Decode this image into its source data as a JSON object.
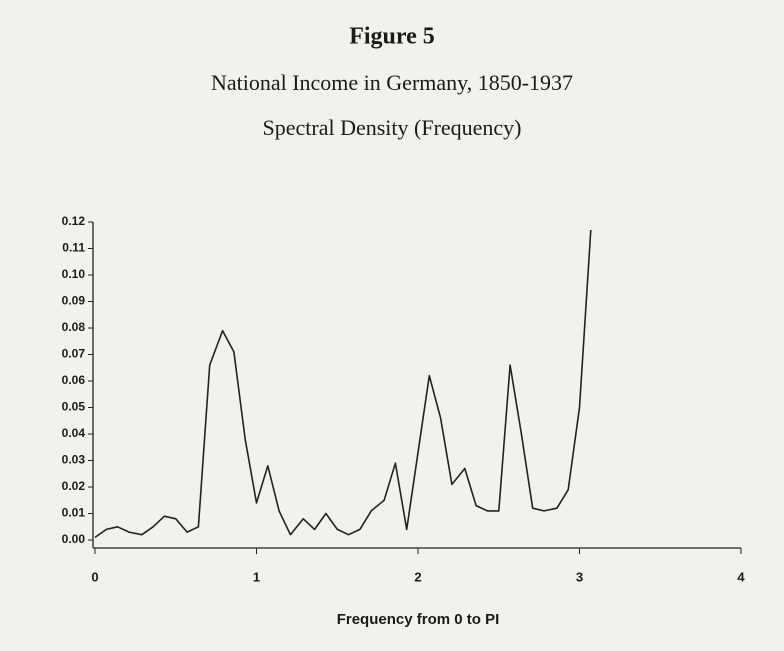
{
  "chart_data": {
    "type": "line",
    "title": "Figure 5",
    "subtitle": "National Income in Germany, 1850-1937",
    "subtitle2": "Spectral Density (Frequency)",
    "x_label": "Frequency from 0 to PI",
    "color": "#222222",
    "x": [
      0,
      0.07,
      0.14,
      0.21,
      0.29,
      0.36,
      0.43,
      0.5,
      0.57,
      0.64,
      0.71,
      0.79,
      0.86,
      0.93,
      1.0,
      1.07,
      1.14,
      1.21,
      1.29,
      1.36,
      1.43,
      1.5,
      1.57,
      1.64,
      1.71,
      1.79,
      1.86,
      1.93,
      2.0,
      2.07,
      2.14,
      2.21,
      2.29,
      2.36,
      2.43,
      2.5,
      2.57,
      2.64,
      2.71,
      2.78,
      2.86,
      2.93,
      3.0,
      3.07
    ],
    "values": [
      0.001,
      0.004,
      0.005,
      0.003,
      0.002,
      0.005,
      0.009,
      0.008,
      0.003,
      0.005,
      0.066,
      0.079,
      0.071,
      0.038,
      0.014,
      0.028,
      0.011,
      0.002,
      0.008,
      0.004,
      0.01,
      0.004,
      0.002,
      0.004,
      0.011,
      0.015,
      0.029,
      0.004,
      0.033,
      0.062,
      0.046,
      0.021,
      0.027,
      0.013,
      0.011,
      0.011,
      0.066,
      0.04,
      0.012,
      0.011,
      0.012,
      0.019,
      0.05,
      0.117
    ],
    "xlim": [
      0,
      4
    ],
    "xticks": [
      0,
      1,
      2,
      3,
      4
    ],
    "ylim": [
      -0.003,
      0.12
    ],
    "yticks": [
      {
        "value": 0,
        "label": "0.00"
      },
      0.01,
      0.02,
      0.03,
      0.04,
      0.05,
      0.06,
      0.07,
      0.08,
      0.09,
      {
        "value": 0.1,
        "label": "0.10"
      },
      0.11,
      0.12
    ]
  }
}
